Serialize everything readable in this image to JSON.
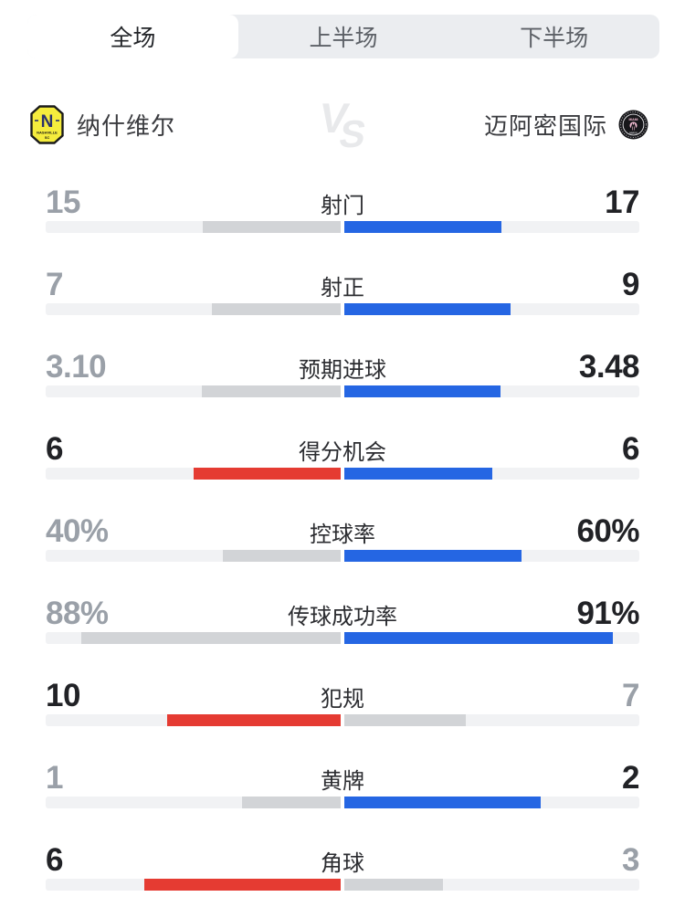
{
  "tabs": [
    {
      "key": "full-match",
      "label": "全场",
      "active": true
    },
    {
      "key": "first-half",
      "label": "上半场",
      "active": false
    },
    {
      "key": "second-half",
      "label": "下半场",
      "active": false
    }
  ],
  "teams": {
    "home": {
      "name": "纳什维尔",
      "logo": "nashville-sc-crest"
    },
    "away": {
      "name": "迈阿密国际",
      "logo": "inter-miami-crest"
    },
    "vs_label": "VS"
  },
  "colors": {
    "home_accent": "#e53b32",
    "away_accent": "#2566e3",
    "neutral_fill": "#d2d4d7",
    "track": "#f1f2f4",
    "value_win": "#212226",
    "value_dim": "#9aa0a8"
  },
  "stats": [
    {
      "label": "射门",
      "left": {
        "value": "15",
        "fill": 0.469,
        "color": "neutral",
        "emphasis": false
      },
      "right": {
        "value": "17",
        "fill": 0.531,
        "color": "away",
        "emphasis": true
      }
    },
    {
      "label": "射正",
      "left": {
        "value": "7",
        "fill": 0.438,
        "color": "neutral",
        "emphasis": false
      },
      "right": {
        "value": "9",
        "fill": 0.563,
        "color": "away",
        "emphasis": true
      }
    },
    {
      "label": "预期进球",
      "left": {
        "value": "3.10",
        "fill": 0.471,
        "color": "neutral",
        "emphasis": false
      },
      "right": {
        "value": "3.48",
        "fill": 0.529,
        "color": "away",
        "emphasis": true
      }
    },
    {
      "label": "得分机会",
      "left": {
        "value": "6",
        "fill": 0.5,
        "color": "home",
        "emphasis": true
      },
      "right": {
        "value": "6",
        "fill": 0.5,
        "color": "away",
        "emphasis": true
      }
    },
    {
      "label": "控球率",
      "left": {
        "value": "40%",
        "fill": 0.4,
        "color": "neutral",
        "emphasis": false
      },
      "right": {
        "value": "60%",
        "fill": 0.6,
        "color": "away",
        "emphasis": true
      }
    },
    {
      "label": "传球成功率",
      "left": {
        "value": "88%",
        "fill": 0.88,
        "color": "neutral",
        "emphasis": false
      },
      "right": {
        "value": "91%",
        "fill": 0.91,
        "color": "away",
        "emphasis": true
      }
    },
    {
      "label": "犯规",
      "left": {
        "value": "10",
        "fill": 0.588,
        "color": "home",
        "emphasis": true
      },
      "right": {
        "value": "7",
        "fill": 0.412,
        "color": "neutral",
        "emphasis": false
      }
    },
    {
      "label": "黄牌",
      "left": {
        "value": "1",
        "fill": 0.333,
        "color": "neutral",
        "emphasis": false
      },
      "right": {
        "value": "2",
        "fill": 0.667,
        "color": "away",
        "emphasis": true
      }
    },
    {
      "label": "角球",
      "left": {
        "value": "6",
        "fill": 0.667,
        "color": "home",
        "emphasis": true
      },
      "right": {
        "value": "3",
        "fill": 0.333,
        "color": "neutral",
        "emphasis": false
      }
    }
  ]
}
